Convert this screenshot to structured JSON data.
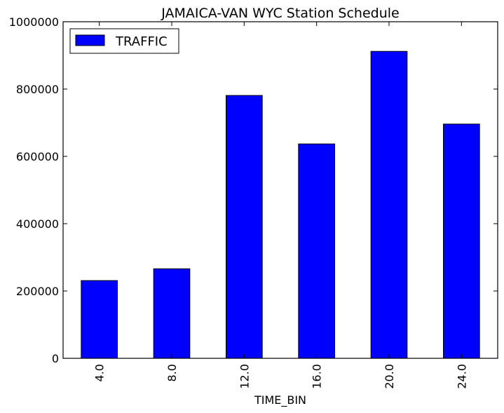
{
  "chart_data": {
    "type": "bar",
    "title": "JAMAICA-VAN WYC Station Schedule",
    "xlabel": "TIME_BIN",
    "ylabel": "",
    "categories": [
      "4.0",
      "8.0",
      "12.0",
      "16.0",
      "20.0",
      "24.0"
    ],
    "series": [
      {
        "name": "TRAFFIC",
        "values": [
          231000,
          266000,
          781000,
          637000,
          912000,
          696000
        ],
        "color": "#0000ff"
      }
    ],
    "ylim": [
      0,
      1000000
    ],
    "yticks": [
      0,
      200000,
      400000,
      600000,
      800000,
      1000000
    ],
    "ytick_labels": [
      "0",
      "200000",
      "400000",
      "600000",
      "800000",
      "1000000"
    ],
    "grid": false,
    "legend_position": "top-left"
  }
}
